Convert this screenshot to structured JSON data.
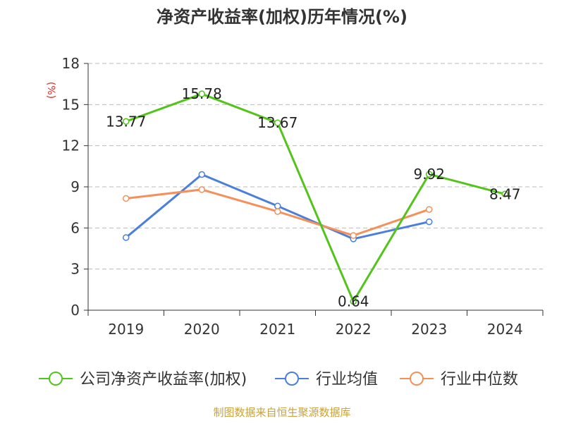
{
  "chart_data": {
    "type": "line",
    "title": "净资产收益率(加权)历年情况(%)",
    "ylabel": "(%)",
    "categories": [
      "2019",
      "2020",
      "2021",
      "2022",
      "2023",
      "2024"
    ],
    "ylim": [
      0,
      18
    ],
    "yticks": [
      0,
      3,
      6,
      9,
      12,
      15,
      18
    ],
    "grid": true,
    "legend_position": "bottom",
    "series": [
      {
        "name": "公司净资产收益率(加权)",
        "color": "#52c41a",
        "values": [
          13.77,
          15.78,
          13.67,
          0.64,
          9.92,
          8.47
        ],
        "labels": [
          "13.77",
          "15.78",
          "13.67",
          "0.64",
          "9.92",
          "8.47"
        ]
      },
      {
        "name": "行业均值",
        "color": "#4a7fdb",
        "values": [
          5.3,
          9.9,
          7.6,
          5.2,
          6.45,
          null
        ]
      },
      {
        "name": "行业中位数",
        "color": "#f5905a",
        "values": [
          8.15,
          8.8,
          7.2,
          5.45,
          7.35,
          null
        ]
      }
    ]
  },
  "footer": {
    "source": "制图数据来自恒生聚源数据库"
  }
}
